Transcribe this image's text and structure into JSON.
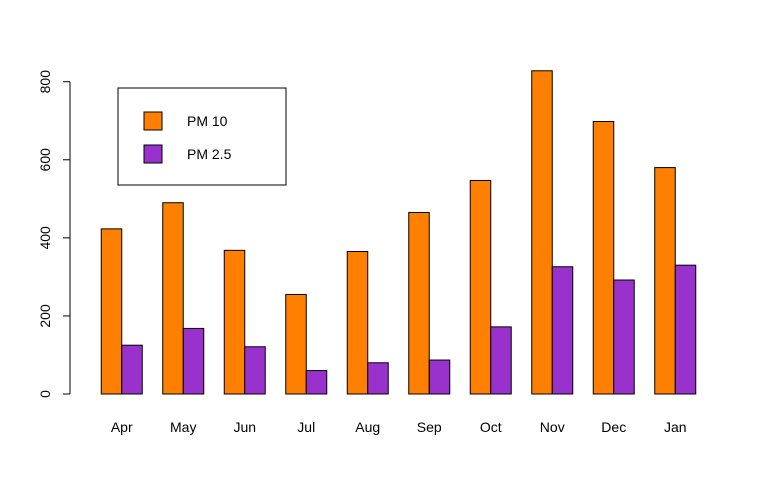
{
  "chart_data": {
    "type": "bar",
    "title": "",
    "xlabel": "",
    "ylabel": "",
    "categories": [
      "Apr",
      "May",
      "Jun",
      "Jul",
      "Aug",
      "Sep",
      "Oct",
      "Nov",
      "Dec",
      "Jan"
    ],
    "series": [
      {
        "name": "PM 10",
        "color": "#FF7F00",
        "values": [
          423,
          490,
          368,
          255,
          365,
          465,
          547,
          828,
          698,
          580
        ]
      },
      {
        "name": "PM 2.5",
        "color": "#9932CC",
        "values": [
          125,
          168,
          121,
          60,
          80,
          87,
          172,
          326,
          292,
          330
        ]
      }
    ],
    "ylim": [
      0,
      830
    ],
    "yticks": [
      0,
      200,
      400,
      600,
      800
    ],
    "grid": false,
    "legend_position": "top-left",
    "bar_border_color": "#000000"
  }
}
